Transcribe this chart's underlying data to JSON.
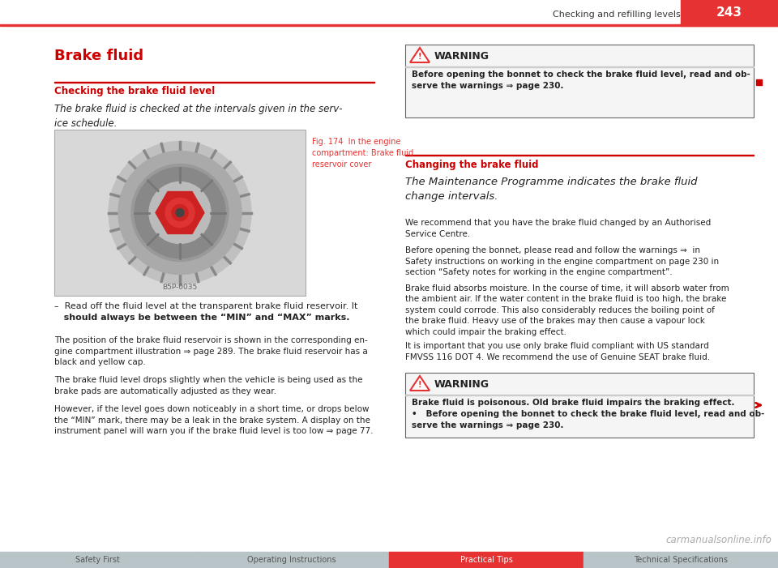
{
  "page_num": "243",
  "header_text": "Checking and refilling levels",
  "page_num_bg": "#e63232",
  "page_num_color": "#ffffff",
  "left_title": "Brake fluid",
  "left_subtitle": "Checking the brake fluid level",
  "left_italic_text": "The brake fluid is checked at the intervals given in the serv-\nice schedule.",
  "fig_caption_color": "#e63232",
  "fig_caption": "Fig. 174  In the engine\ncompartment: Brake fluid\nreservoir cover",
  "fig_label": "B5P-0035",
  "bullet_text1": "–  Read off the fluid level at the transparent brake fluid reservoir. It",
  "bullet_text2": "   should always be between the “MIN” and “MAX” marks.",
  "para1": "The position of the brake fluid reservoir is shown in the corresponding en-\ngine compartment illustration ⇒ page 289. The brake fluid reservoir has a\nblack and yellow cap.",
  "para2": "The brake fluid level drops slightly when the vehicle is being used as the\nbrake pads are automatically adjusted as they wear.",
  "para3": "However, if the level goes down noticeably in a short time, or drops below\nthe “MIN” mark, there may be a leak in the brake system. A display on the\ninstrument panel will warn you if the brake fluid level is too low ⇒ page 77.",
  "warning1_title": "WARNING",
  "warning1_text": "Before opening the bonnet to check the brake fluid level, read and ob-\nserve the warnings ⇒ page 230.",
  "right_subtitle": "Changing the brake fluid",
  "right_italic": "The Maintenance Programme indicates the brake fluid\nchange intervals.",
  "right_para1": "We recommend that you have the brake fluid changed by an Authorised\nService Centre.",
  "right_para2": "Before opening the bonnet, please read and follow the warnings ⇒  in\nSafety instructions on working in the engine compartment on page 230 in\nsection “Safety notes for working in the engine compartment”.",
  "right_para3": "Brake fluid absorbs moisture. In the course of time, it will absorb water from\nthe ambient air. If the water content in the brake fluid is too high, the brake\nsystem could corrode. This also considerably reduces the boiling point of\nthe brake fluid. Heavy use of the brakes may then cause a vapour lock\nwhich could impair the braking effect.",
  "right_para4": "It is important that you use only brake fluid compliant with US standard\nFMVSS 116 DOT 4. We recommend the use of Genuine SEAT brake fluid.",
  "warning2_title": "WARNING",
  "warning2_bold": "Brake fluid is poisonous. Old brake fluid impairs the braking effect.",
  "warning2_bullet": "•   Before opening the bonnet to check the brake fluid level, read and ob-\nserve the warnings ⇒ page 230.",
  "footer_tabs": [
    "Safety First",
    "Operating Instructions",
    "Practical Tips",
    "Technical Specifications"
  ],
  "footer_tab_colors": [
    "#b8c4c8",
    "#b8c4c8",
    "#e63232",
    "#b8c4c8"
  ],
  "footer_text_colors": [
    "#555555",
    "#555555",
    "#ffffff",
    "#555555"
  ],
  "subtitle_color": "#e63232",
  "warning_border_color": "#666666",
  "warning_icon_color": "#e63232",
  "bg_color": "#ffffff",
  "text_color": "#222222",
  "header_line_color": "#cccccc",
  "right_marker_color": "#cc0000"
}
